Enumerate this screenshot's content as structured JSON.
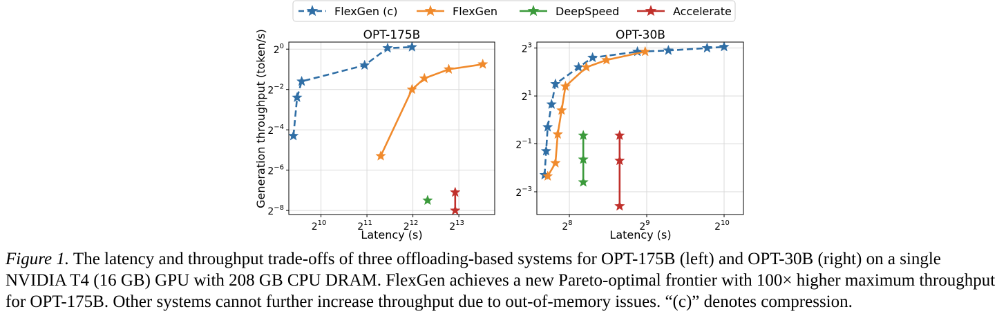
{
  "legend": {
    "items": [
      {
        "label": "FlexGen (c)",
        "color": "#2f6ea5",
        "dashed": true
      },
      {
        "label": "FlexGen",
        "color": "#f08a2c",
        "dashed": false
      },
      {
        "label": "DeepSpeed",
        "color": "#3b9a3b",
        "dashed": false
      },
      {
        "label": "Accelerate",
        "color": "#c0302b",
        "dashed": false
      }
    ]
  },
  "chart_data": [
    {
      "type": "line",
      "title": "OPT-175B",
      "xlabel": "Latency (s)",
      "ylabel": "Generation throughput (token/s)",
      "x_scale": "log2",
      "y_scale": "log2",
      "xlim_log2": [
        9.3,
        13.78
      ],
      "ylim_log2": [
        -8.2,
        0.35
      ],
      "x_ticks": [
        {
          "exp": "10",
          "value": 10
        },
        {
          "exp": "11",
          "value": 11
        },
        {
          "exp": "12",
          "value": 12
        },
        {
          "exp": "13",
          "value": 13
        }
      ],
      "y_ticks": [
        {
          "exp": "0",
          "value": 0
        },
        {
          "exp": "−2",
          "value": -2
        },
        {
          "exp": "−4",
          "value": -4
        },
        {
          "exp": "−6",
          "value": -6
        },
        {
          "exp": "−8",
          "value": -8
        }
      ],
      "grid": true,
      "series": [
        {
          "name": "FlexGen (c)",
          "color": "#2f6ea5",
          "dashed": true,
          "points_log2": [
            [
              9.4,
              -4.3
            ],
            [
              9.48,
              -2.4
            ],
            [
              9.58,
              -1.6
            ],
            [
              10.95,
              -0.8
            ],
            [
              11.45,
              0.05
            ],
            [
              11.98,
              0.1
            ]
          ]
        },
        {
          "name": "FlexGen",
          "color": "#f08a2c",
          "dashed": false,
          "points_log2": [
            [
              11.3,
              -5.3
            ],
            [
              11.98,
              -2.0
            ],
            [
              12.25,
              -1.45
            ],
            [
              12.78,
              -1.0
            ],
            [
              13.52,
              -0.75
            ]
          ]
        },
        {
          "name": "DeepSpeed",
          "color": "#3b9a3b",
          "dashed": false,
          "points_log2": [
            [
              12.32,
              -7.5
            ]
          ]
        },
        {
          "name": "Accelerate",
          "color": "#c0302b",
          "dashed": false,
          "points_log2": [
            [
              12.92,
              -7.1
            ],
            [
              12.92,
              -8.0
            ]
          ]
        }
      ]
    },
    {
      "type": "line",
      "title": "OPT-30B",
      "xlabel": "Latency (s)",
      "ylabel": "",
      "x_scale": "log2",
      "y_scale": "log2",
      "xlim_log2": [
        7.58,
        10.25
      ],
      "ylim_log2": [
        -3.95,
        3.25
      ],
      "x_ticks": [
        {
          "exp": "8",
          "value": 8
        },
        {
          "exp": "9",
          "value": 9
        },
        {
          "exp": "10",
          "value": 10
        }
      ],
      "y_ticks": [
        {
          "exp": "3",
          "value": 3
        },
        {
          "exp": "1",
          "value": 1
        },
        {
          "exp": "−1",
          "value": -1
        },
        {
          "exp": "−3",
          "value": -3
        }
      ],
      "grid": true,
      "series": [
        {
          "name": "FlexGen (c)",
          "color": "#2f6ea5",
          "dashed": true,
          "points_log2": [
            [
              7.68,
              -2.3
            ],
            [
              7.7,
              -1.3
            ],
            [
              7.72,
              -0.3
            ],
            [
              7.77,
              0.65
            ],
            [
              7.82,
              1.5
            ],
            [
              8.12,
              2.2
            ],
            [
              8.3,
              2.6
            ],
            [
              8.88,
              2.85
            ],
            [
              9.28,
              2.9
            ],
            [
              9.78,
              3.0
            ],
            [
              10.0,
              3.05
            ]
          ]
        },
        {
          "name": "FlexGen",
          "color": "#f08a2c",
          "dashed": false,
          "points_log2": [
            [
              7.72,
              -2.35
            ],
            [
              7.82,
              -1.8
            ],
            [
              7.85,
              -0.6
            ],
            [
              7.9,
              0.4
            ],
            [
              7.95,
              1.4
            ],
            [
              8.22,
              2.2
            ],
            [
              8.48,
              2.5
            ],
            [
              8.98,
              2.85
            ]
          ]
        },
        {
          "name": "DeepSpeed",
          "color": "#3b9a3b",
          "dashed": false,
          "points_log2": [
            [
              8.18,
              -0.65
            ],
            [
              8.18,
              -1.65
            ],
            [
              8.18,
              -2.6
            ]
          ]
        },
        {
          "name": "Accelerate",
          "color": "#c0302b",
          "dashed": false,
          "points_log2": [
            [
              8.65,
              -0.65
            ],
            [
              8.65,
              -1.7
            ],
            [
              8.65,
              -3.6
            ]
          ]
        }
      ]
    }
  ],
  "caption": {
    "label": "Figure 1.",
    "text": " The latency and throughput trade-offs of three offloading-based systems for OPT-175B (left) and OPT-30B (right) on a single NVIDIA T4 (16 GB) GPU with 208 GB CPU DRAM. FlexGen achieves a new Pareto-optimal frontier with 100× higher maximum throughput for OPT-175B. Other systems cannot further increase throughput due to out-of-memory issues. “(c)” denotes compression."
  }
}
